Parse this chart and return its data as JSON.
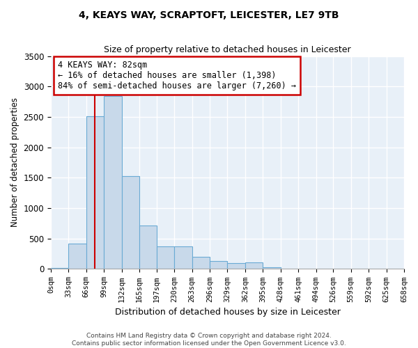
{
  "title": "4, KEAYS WAY, SCRAPTOFT, LEICESTER, LE7 9TB",
  "subtitle": "Size of property relative to detached houses in Leicester",
  "xlabel": "Distribution of detached houses by size in Leicester",
  "ylabel": "Number of detached properties",
  "bar_color": "#c8d9ea",
  "bar_edge_color": "#6aaad4",
  "background_color": "#e8f0f8",
  "grid_color": "#ffffff",
  "bin_edges": [
    0,
    33,
    66,
    99,
    132,
    165,
    197,
    230,
    263,
    296,
    329,
    362,
    395,
    428,
    461,
    494,
    526,
    559,
    592,
    625,
    658
  ],
  "bin_labels": [
    "0sqm",
    "33sqm",
    "66sqm",
    "99sqm",
    "132sqm",
    "165sqm",
    "197sqm",
    "230sqm",
    "263sqm",
    "296sqm",
    "329sqm",
    "362sqm",
    "395sqm",
    "428sqm",
    "461sqm",
    "494sqm",
    "526sqm",
    "559sqm",
    "592sqm",
    "625sqm",
    "658sqm"
  ],
  "bar_values": [
    20,
    420,
    2510,
    2840,
    1530,
    720,
    370,
    370,
    200,
    130,
    100,
    110,
    30,
    0,
    0,
    0,
    0,
    0,
    0,
    0
  ],
  "ylim": [
    0,
    3500
  ],
  "yticks": [
    0,
    500,
    1000,
    1500,
    2000,
    2500,
    3000,
    3500
  ],
  "property_sqm": 82,
  "annotation_text": "4 KEAYS WAY: 82sqm\n← 16% of detached houses are smaller (1,398)\n84% of semi-detached houses are larger (7,260) →",
  "annotation_box_color": "#ffffff",
  "annotation_box_edge_color": "#cc0000",
  "vline_color": "#cc0000",
  "footer_line1": "Contains HM Land Registry data © Crown copyright and database right 2024.",
  "footer_line2": "Contains public sector information licensed under the Open Government Licence v3.0."
}
